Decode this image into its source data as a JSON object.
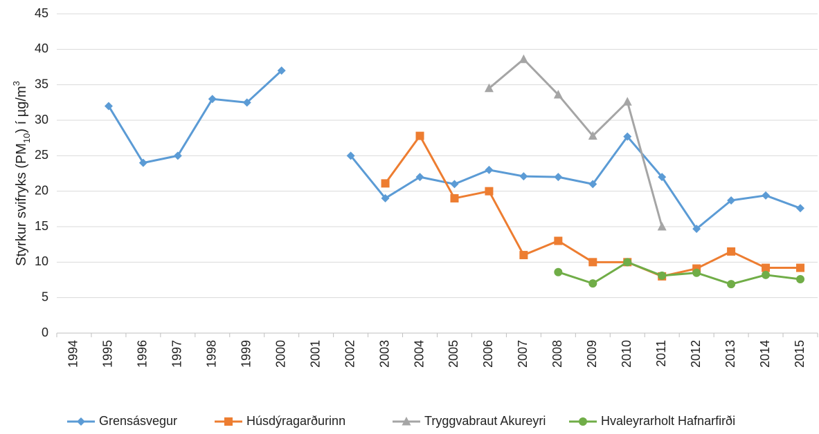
{
  "chart_data": {
    "type": "line",
    "ylabel_parts": [
      "Styrkur svifryks (PM",
      "10",
      ") í µg/m",
      "3"
    ],
    "categories": [
      "1994",
      "1995",
      "1996",
      "1997",
      "1998",
      "1999",
      "2000",
      "2001",
      "2002",
      "2003",
      "2004",
      "2005",
      "2006",
      "2007",
      "2008",
      "2009",
      "2010",
      "2011",
      "2012",
      "2013",
      "2014",
      "2015"
    ],
    "series": [
      {
        "name": "Grensásvegur",
        "color": "#5b9bd5",
        "marker": "diamond",
        "values": [
          null,
          32,
          24,
          25,
          33,
          32.5,
          37,
          null,
          25,
          19,
          22,
          21,
          23,
          22.1,
          22,
          21,
          27.7,
          22,
          14.7,
          18.7,
          19.4,
          17.6
        ]
      },
      {
        "name": "Húsdýragarðurinn",
        "color": "#ed7d31",
        "marker": "square",
        "values": [
          null,
          null,
          null,
          null,
          null,
          null,
          null,
          null,
          null,
          21.1,
          27.8,
          19,
          20,
          11,
          13,
          10,
          10,
          8,
          9.1,
          11.5,
          9.2,
          9.2
        ]
      },
      {
        "name": "Tryggvabraut Akureyri",
        "color": "#a5a5a5",
        "marker": "triangle",
        "values": [
          null,
          null,
          null,
          null,
          null,
          null,
          null,
          null,
          null,
          null,
          null,
          null,
          34.5,
          38.6,
          33.6,
          27.8,
          32.6,
          15,
          null,
          null,
          null,
          null
        ]
      },
      {
        "name": "Hvaleyrarholt Hafnarfirði",
        "color": "#70ad47",
        "marker": "circle",
        "values": [
          null,
          null,
          null,
          null,
          null,
          null,
          null,
          null,
          null,
          null,
          null,
          null,
          null,
          null,
          8.6,
          7,
          10,
          8.1,
          8.5,
          6.9,
          8.2,
          7.6
        ]
      }
    ],
    "ylim": [
      0,
      45
    ],
    "yticks": [
      0,
      5,
      10,
      15,
      20,
      25,
      30,
      35,
      40,
      45
    ],
    "grid": true,
    "legend": "bottom"
  }
}
